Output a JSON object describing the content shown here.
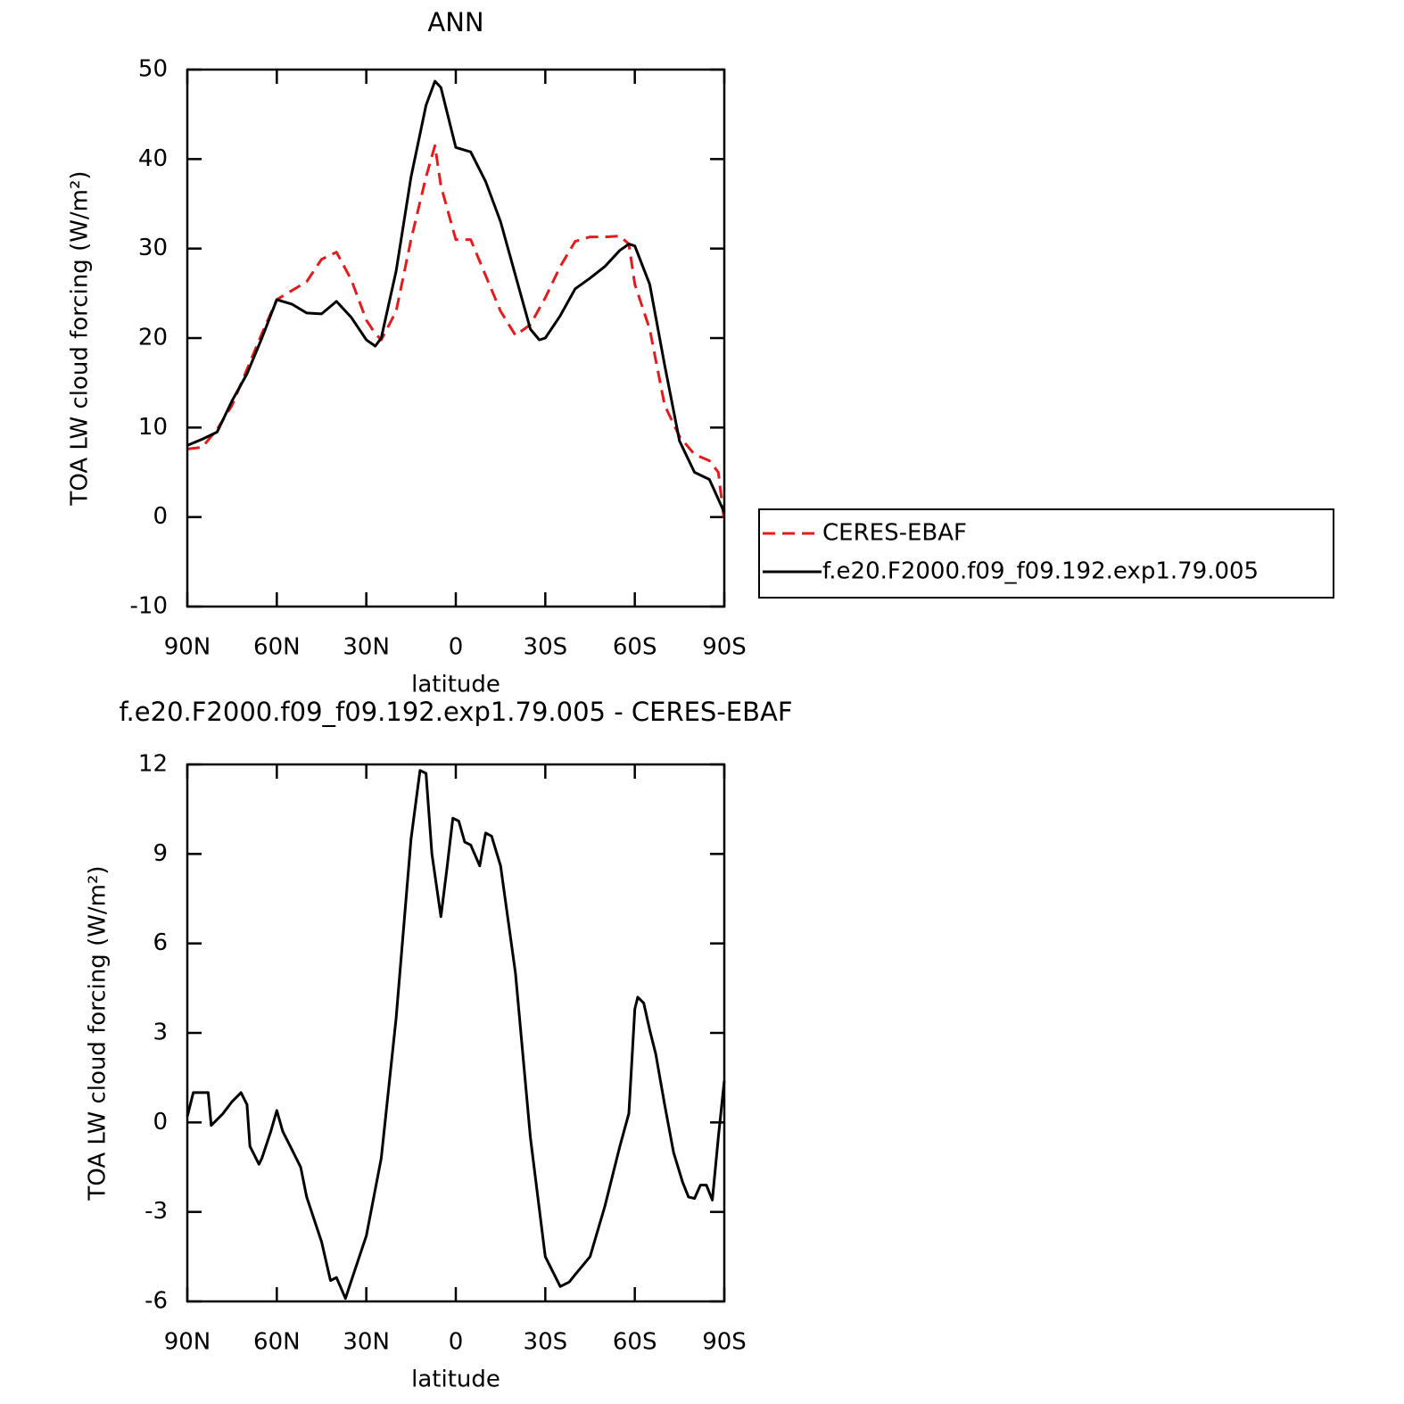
{
  "chart_data": [
    {
      "type": "line",
      "title": "ANN",
      "xlabel": "latitude",
      "ylabel": "TOA LW cloud forcing (W/m²)",
      "x": [
        90,
        85,
        80,
        75,
        70,
        65,
        60,
        55,
        50,
        45,
        40,
        35,
        30,
        27,
        25,
        20,
        15,
        10,
        7,
        5,
        0,
        -5,
        -10,
        -15,
        -20,
        -25,
        -28,
        -30,
        -35,
        -40,
        -45,
        -50,
        -55,
        -58,
        -60,
        -65,
        -70,
        -75,
        -80,
        -85,
        -88,
        -90
      ],
      "series": [
        {
          "name": "CERES-EBAF",
          "color": "#e41a1c",
          "dashed": true,
          "values": [
            7.6,
            7.8,
            9.8,
            12.5,
            16.5,
            20.5,
            24.3,
            25.3,
            26.3,
            28.8,
            29.6,
            26.5,
            22,
            20.5,
            19.8,
            23,
            31,
            38,
            41.5,
            37,
            31,
            31,
            27,
            23,
            20.3,
            21.5,
            23.3,
            24.5,
            28,
            30.8,
            31.3,
            31.3,
            31.4,
            30.5,
            26,
            21,
            12.5,
            9,
            7,
            6.3,
            5,
            -0.5
          ]
        },
        {
          "name": "f.e20.F2000.f09_f09.192.exp1.79.005",
          "color": "#000000",
          "dashed": false,
          "values": [
            8,
            8.7,
            9.5,
            13,
            16,
            20,
            24.3,
            23.8,
            22.8,
            22.7,
            24.1,
            22.3,
            19.8,
            19.1,
            20,
            27.5,
            38,
            46,
            48.7,
            48,
            41.3,
            40.8,
            37.5,
            33,
            27,
            21,
            19.8,
            20,
            22.5,
            25.5,
            26.7,
            28,
            29.8,
            30.5,
            30.3,
            26,
            17,
            8.5,
            5,
            4.2,
            2,
            0.5
          ]
        }
      ],
      "xlim": [
        90,
        -90
      ],
      "xticks": [
        {
          "value": 90,
          "label": "90N"
        },
        {
          "value": 60,
          "label": "60N"
        },
        {
          "value": 30,
          "label": "30N"
        },
        0,
        {
          "value": -30,
          "label": "30S"
        },
        {
          "value": -60,
          "label": "60S"
        },
        {
          "value": -90,
          "label": "90S"
        }
      ],
      "ylim": [
        -10,
        50
      ],
      "yticks": [
        -10,
        0,
        10,
        20,
        30,
        40,
        50
      ],
      "legend": "right"
    },
    {
      "type": "line",
      "title": "f.e20.F2000.f09_f09.192.exp1.79.005 - CERES-EBAF",
      "xlabel": "latitude",
      "ylabel": "TOA LW cloud forcing (W/m²)",
      "x": [
        90,
        88,
        85,
        83,
        82,
        78,
        75,
        72,
        70,
        69,
        66,
        65,
        62,
        60,
        58,
        55,
        52,
        50,
        45,
        42,
        40,
        37,
        35,
        30,
        25,
        20,
        15,
        12,
        10,
        8,
        5,
        3,
        1,
        -1,
        -3,
        -5,
        -8,
        -10,
        -12,
        -15,
        -20,
        -25,
        -30,
        -35,
        -38,
        -40,
        -45,
        -50,
        -55,
        -58,
        -60,
        -61,
        -63,
        -65,
        -67,
        -70,
        -73,
        -76,
        -78,
        -80,
        -82,
        -84,
        -86,
        -88,
        -90
      ],
      "color": "#000000",
      "values": [
        0.2,
        1.0,
        1.0,
        1.0,
        -0.1,
        0.3,
        0.7,
        1.0,
        0.6,
        -0.8,
        -1.4,
        -1.2,
        -0.3,
        0.4,
        -0.3,
        -0.9,
        -1.5,
        -2.5,
        -4.0,
        -5.3,
        -5.2,
        -5.9,
        -5.3,
        -3.8,
        -1.2,
        3.5,
        9.5,
        11.8,
        11.7,
        9,
        6.9,
        8.5,
        10.2,
        10.1,
        9.4,
        9.3,
        8.6,
        9.7,
        9.6,
        8.6,
        5,
        -0.5,
        -4.5,
        -5.5,
        -5.35,
        -5.1,
        -4.5,
        -2.8,
        -0.8,
        0.3,
        3.8,
        4.2,
        4.0,
        3.1,
        2.3,
        0.6,
        -1.0,
        -2.0,
        -2.5,
        -2.55,
        -2.1,
        -2.1,
        -2.6,
        -0.5,
        1.4
      ],
      "xlim": [
        90,
        -90
      ],
      "xticks": [
        {
          "value": 90,
          "label": "90N"
        },
        {
          "value": 60,
          "label": "60N"
        },
        {
          "value": 30,
          "label": "30N"
        },
        0,
        {
          "value": -30,
          "label": "30S"
        },
        {
          "value": -60,
          "label": "60S"
        },
        {
          "value": -90,
          "label": "90S"
        }
      ],
      "ylim": [
        -6,
        12
      ],
      "yticks": [
        -6,
        -3,
        0,
        3,
        6,
        9,
        12
      ]
    }
  ]
}
